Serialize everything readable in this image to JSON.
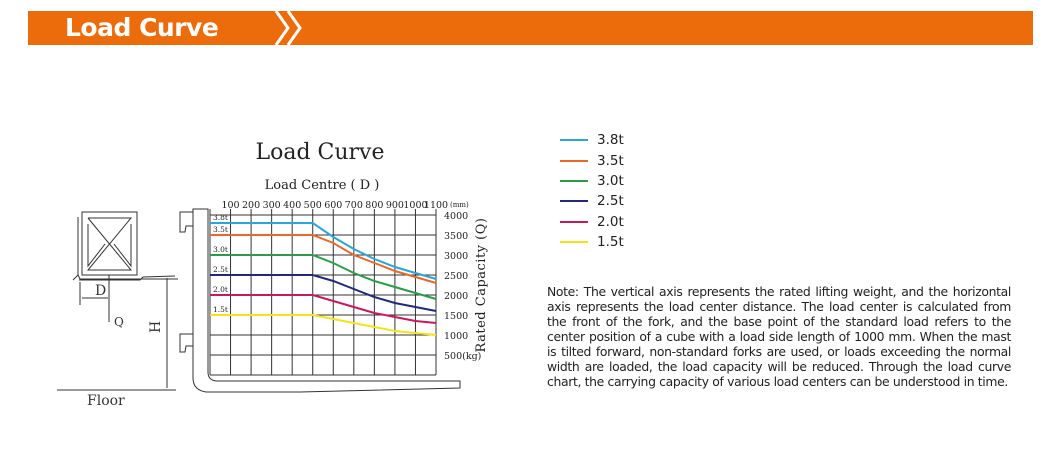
{
  "header": {
    "title": "Load Curve",
    "chevron_icon": "double-chevron-right-icon",
    "color": "#ec6b0a"
  },
  "figure": {
    "title": "Load Curve",
    "subtitle": "Load Centre ( D )",
    "labels": {
      "d": "D",
      "q": "Q",
      "h": "H",
      "floor": "Floor"
    }
  },
  "chart_data": {
    "type": "line",
    "title": "Load Curve",
    "xlabel": "Load Centre ( D )",
    "ylabel": "Rated Capacity (Q)",
    "x_unit": "(mm)",
    "y_unit": "(kg)",
    "xlim": [
      0,
      1100
    ],
    "ylim": [
      0,
      4000
    ],
    "grid": true,
    "x_ticks": [
      100,
      200,
      300,
      400,
      500,
      600,
      700,
      800,
      900,
      1000,
      1100
    ],
    "y_ticks": [
      500,
      1000,
      1500,
      2000,
      2500,
      3000,
      3500,
      4000
    ],
    "x": [
      0,
      100,
      200,
      300,
      400,
      500,
      600,
      700,
      800,
      900,
      1000,
      1100
    ],
    "series": [
      {
        "name": "3.8t",
        "color": "#2aa5d6",
        "values": [
          3800,
          3800,
          3800,
          3800,
          3800,
          3800,
          3450,
          3150,
          2900,
          2700,
          2550,
          2400
        ]
      },
      {
        "name": "3.5t",
        "color": "#e8672a",
        "values": [
          3500,
          3500,
          3500,
          3500,
          3500,
          3500,
          3300,
          3000,
          2800,
          2600,
          2450,
          2300
        ]
      },
      {
        "name": "3.0t",
        "color": "#2a9c48",
        "values": [
          3000,
          3000,
          3000,
          3000,
          3000,
          3000,
          2800,
          2550,
          2350,
          2200,
          2050,
          1900
        ]
      },
      {
        "name": "2.5t",
        "color": "#1f2a78",
        "values": [
          2500,
          2500,
          2500,
          2500,
          2500,
          2500,
          2350,
          2150,
          1950,
          1800,
          1700,
          1600
        ]
      },
      {
        "name": "2.0t",
        "color": "#c8195a",
        "values": [
          2000,
          2000,
          2000,
          2000,
          2000,
          2000,
          1850,
          1700,
          1550,
          1450,
          1350,
          1300
        ]
      },
      {
        "name": "1.5t",
        "color": "#f2e31c",
        "values": [
          1500,
          1500,
          1500,
          1500,
          1500,
          1500,
          1400,
          1300,
          1200,
          1100,
          1050,
          1000
        ]
      }
    ],
    "legend": "right"
  },
  "legend": [
    {
      "label": "3.8t",
      "color": "#2aa5d6"
    },
    {
      "label": "3.5t",
      "color": "#e8672a"
    },
    {
      "label": "3.0t",
      "color": "#2a9c48"
    },
    {
      "label": "2.5t",
      "color": "#1f2a78"
    },
    {
      "label": "2.0t",
      "color": "#c8195a"
    },
    {
      "label": "1.5t",
      "color": "#f2e31c"
    }
  ],
  "note": "Note: The vertical axis represents the rated lifting weight, and the horizontal axis represents the load center distance. The load center is calculated from the front of the fork, and the base point of the standard load refers to the center position of a cube with a load side length of 1000 mm. When the mast is tilted forward, non-standard forks are used, or loads exceeding the normal width are loaded, the load capacity will be reduced. Through the load curve chart, the carrying capacity of various load centers can be understood in time."
}
